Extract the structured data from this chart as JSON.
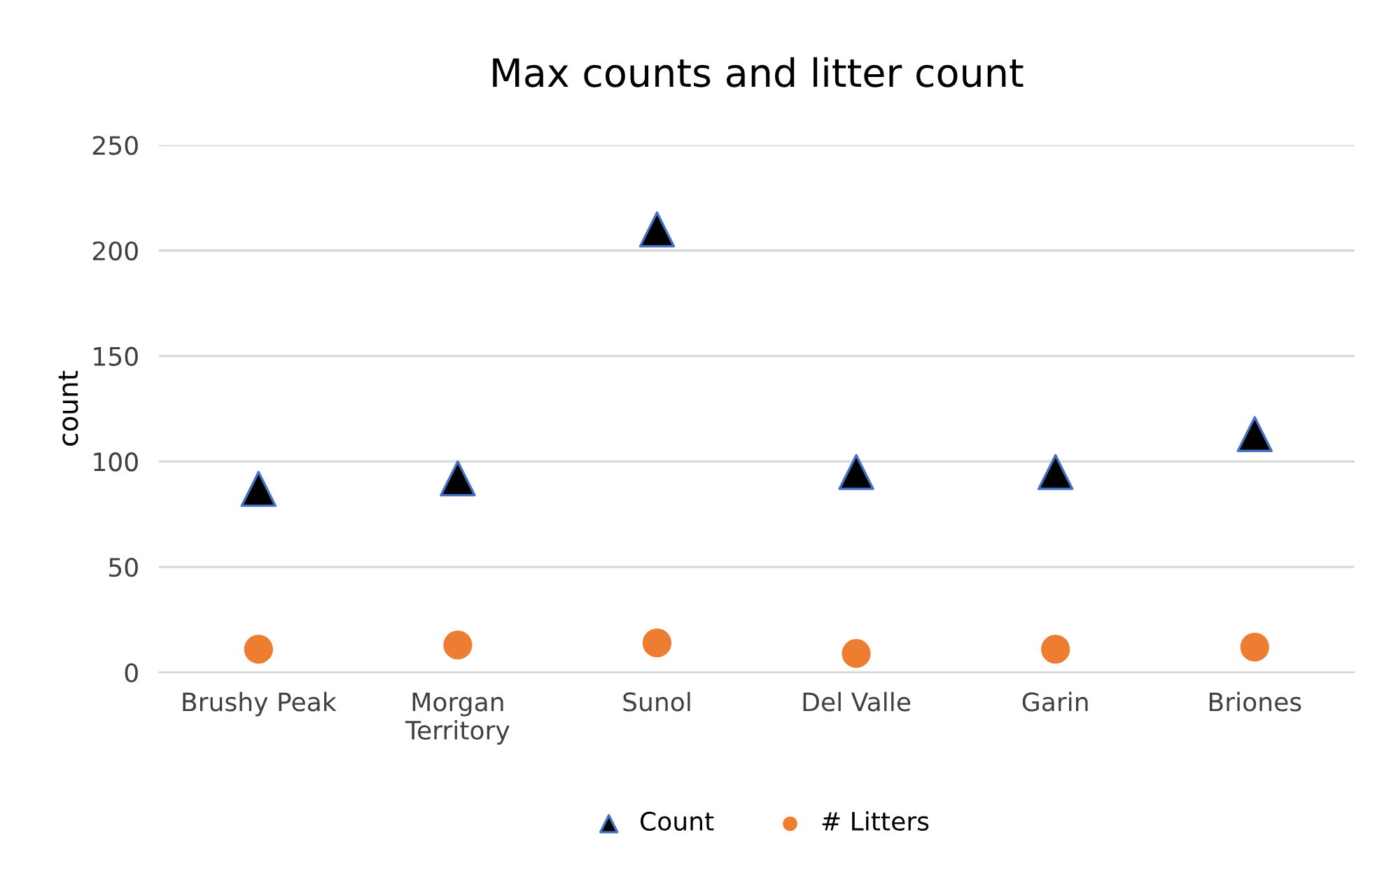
{
  "chart_data": {
    "type": "scatter",
    "title": "Max counts and litter count",
    "ylabel": "count",
    "categories": [
      "Brushy Peak",
      "Morgan\nTerritory",
      "Sunol",
      "Del Valle",
      "Garin",
      "Briones"
    ],
    "series": [
      {
        "name": "Count",
        "color": "#000000",
        "marker": "triangle",
        "values": [
          87,
          92,
          210,
          95,
          95,
          113
        ]
      },
      {
        "name": "# Litters",
        "color": "#ed7d31",
        "marker": "circle",
        "values": [
          11,
          13,
          14,
          9,
          11,
          12
        ]
      }
    ],
    "ylim": [
      0,
      250
    ],
    "yticks": [
      0,
      50,
      100,
      150,
      200,
      250
    ],
    "grid": "y",
    "legend": "bottom"
  }
}
